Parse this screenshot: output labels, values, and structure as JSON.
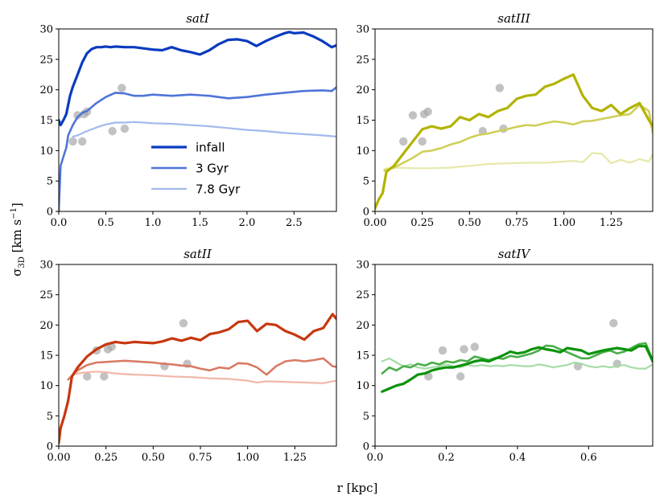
{
  "figure": {
    "ylabel": "σ3D [km s−1]",
    "xlabel": "r [kpc]"
  },
  "legend": {
    "entries": [
      "infall",
      "3 Gyr",
      "7.8 Gyr"
    ],
    "placement": "center"
  },
  "chart_data": [
    {
      "type": "line",
      "title": "satI",
      "xlim": [
        0,
        2.95
      ],
      "ylim": [
        0,
        30
      ],
      "xticks": [
        "0.0",
        "0.5",
        "1.0",
        "1.5",
        "2.0",
        "2.5"
      ],
      "yticks": [
        "0",
        "5",
        "10",
        "15",
        "20",
        "25",
        "30"
      ],
      "colors": [
        "#0a3bbf",
        "#4f74d8",
        "#a3b9ec"
      ],
      "series": [
        {
          "name": "infall",
          "x": [
            0.0,
            0.02,
            0.05,
            0.08,
            0.1,
            0.12,
            0.15,
            0.2,
            0.25,
            0.3,
            0.35,
            0.4,
            0.45,
            0.5,
            0.55,
            0.6,
            0.7,
            0.8,
            0.9,
            1.0,
            1.1,
            1.2,
            1.3,
            1.4,
            1.5,
            1.6,
            1.7,
            1.8,
            1.9,
            2.0,
            2.1,
            2.2,
            2.3,
            2.4,
            2.45,
            2.5,
            2.6,
            2.7,
            2.8,
            2.9,
            2.95
          ],
          "y": [
            15.0,
            14.2,
            15.0,
            16.0,
            17.5,
            19.0,
            20.5,
            22.5,
            24.5,
            26.0,
            26.7,
            27.0,
            27.0,
            27.1,
            27.0,
            27.1,
            27.0,
            27.0,
            26.8,
            26.6,
            26.5,
            27.0,
            26.5,
            26.2,
            25.8,
            26.5,
            27.5,
            28.2,
            28.3,
            28.0,
            27.2,
            28.0,
            28.7,
            29.3,
            29.5,
            29.3,
            29.4,
            28.8,
            28.0,
            27.0,
            27.3
          ]
        },
        {
          "name": "3 Gyr",
          "x": [
            0.0,
            0.02,
            0.05,
            0.08,
            0.1,
            0.15,
            0.2,
            0.25,
            0.3,
            0.4,
            0.5,
            0.6,
            0.7,
            0.8,
            0.9,
            1.0,
            1.2,
            1.4,
            1.6,
            1.8,
            2.0,
            2.2,
            2.4,
            2.6,
            2.8,
            2.9,
            2.95
          ],
          "y": [
            0.0,
            7.5,
            9.0,
            10.5,
            12.5,
            14.2,
            15.5,
            16.2,
            16.5,
            17.8,
            18.8,
            19.5,
            19.4,
            19.0,
            19.0,
            19.2,
            19.0,
            19.2,
            19.0,
            18.6,
            18.8,
            19.2,
            19.5,
            19.8,
            19.9,
            19.8,
            20.4
          ]
        },
        {
          "name": "7.8 Gyr",
          "x": [
            0.15,
            0.2,
            0.3,
            0.4,
            0.5,
            0.6,
            0.7,
            0.8,
            0.9,
            1.0,
            1.2,
            1.4,
            1.6,
            1.8,
            2.0,
            2.2,
            2.4,
            2.6,
            2.8,
            2.95
          ],
          "y": [
            12.3,
            12.5,
            13.2,
            13.8,
            14.3,
            14.6,
            14.6,
            14.7,
            14.6,
            14.5,
            14.4,
            14.2,
            14.0,
            13.7,
            13.4,
            13.2,
            12.9,
            12.7,
            12.5,
            12.3
          ]
        }
      ],
      "scatter": {
        "x": [
          0.15,
          0.2,
          0.25,
          0.27,
          0.3,
          0.57,
          0.67,
          0.7
        ],
        "y": [
          11.5,
          15.8,
          11.5,
          16.0,
          16.4,
          13.2,
          20.3,
          13.6
        ]
      }
    },
    {
      "type": "line",
      "title": "satIII",
      "xlim": [
        0,
        1.47
      ],
      "ylim": [
        0,
        30
      ],
      "xticks": [
        "0.00",
        "0.25",
        "0.50",
        "0.75",
        "1.00",
        "1.25"
      ],
      "yticks": [
        "0",
        "5",
        "10",
        "15",
        "20",
        "25",
        "30"
      ],
      "colors": [
        "#b2b300",
        "#cfcf5a",
        "#e7e8aa"
      ],
      "series": [
        {
          "name": "infall",
          "x": [
            0.0,
            0.02,
            0.04,
            0.06,
            0.1,
            0.15,
            0.2,
            0.25,
            0.3,
            0.35,
            0.4,
            0.45,
            0.5,
            0.55,
            0.6,
            0.65,
            0.7,
            0.75,
            0.8,
            0.85,
            0.9,
            0.95,
            1.0,
            1.05,
            1.1,
            1.15,
            1.2,
            1.25,
            1.3,
            1.35,
            1.4,
            1.45,
            1.47
          ],
          "y": [
            0.5,
            2.0,
            3.0,
            6.5,
            7.5,
            9.5,
            11.5,
            13.5,
            14.0,
            13.6,
            14.0,
            15.5,
            15.0,
            16.0,
            15.5,
            16.5,
            17.0,
            18.5,
            19.0,
            19.2,
            20.5,
            21.0,
            21.8,
            22.5,
            19.0,
            17.0,
            16.5,
            17.5,
            16.0,
            17.0,
            17.8,
            15.0,
            14.0
          ]
        },
        {
          "name": "3 Gyr",
          "x": [
            0.05,
            0.1,
            0.15,
            0.2,
            0.25,
            0.3,
            0.35,
            0.4,
            0.45,
            0.5,
            0.55,
            0.6,
            0.65,
            0.7,
            0.75,
            0.8,
            0.85,
            0.9,
            0.95,
            1.0,
            1.05,
            1.1,
            1.15,
            1.2,
            1.25,
            1.3,
            1.35,
            1.4,
            1.45,
            1.47
          ],
          "y": [
            6.7,
            7.2,
            8.0,
            8.8,
            9.8,
            10.0,
            10.4,
            11.0,
            11.4,
            12.1,
            12.6,
            12.8,
            13.2,
            13.5,
            13.9,
            14.2,
            14.1,
            14.5,
            14.8,
            14.6,
            14.3,
            14.8,
            14.9,
            15.2,
            15.5,
            15.8,
            16.0,
            17.5,
            16.5,
            12.9
          ]
        },
        {
          "name": "7.8 Gyr",
          "x": [
            0.05,
            0.1,
            0.2,
            0.3,
            0.4,
            0.5,
            0.6,
            0.7,
            0.8,
            0.9,
            1.0,
            1.05,
            1.1,
            1.15,
            1.2,
            1.25,
            1.3,
            1.35,
            1.4,
            1.45,
            1.47
          ],
          "y": [
            7.0,
            7.2,
            7.1,
            7.1,
            7.2,
            7.5,
            7.8,
            7.9,
            8.0,
            8.0,
            8.2,
            8.3,
            8.1,
            9.6,
            9.5,
            7.9,
            8.5,
            8.0,
            8.6,
            8.2,
            9.4
          ]
        }
      ],
      "scatter": {
        "x": [
          0.15,
          0.2,
          0.25,
          0.26,
          0.28,
          0.57,
          0.66,
          0.68
        ],
        "y": [
          11.5,
          15.8,
          11.5,
          16.0,
          16.4,
          13.2,
          20.3,
          13.6
        ]
      }
    },
    {
      "type": "line",
      "title": "satII",
      "xlim": [
        0,
        1.47
      ],
      "ylim": [
        0,
        30
      ],
      "xticks": [
        "0.00",
        "0.25",
        "0.50",
        "0.75",
        "1.00",
        "1.25"
      ],
      "yticks": [
        "0",
        "5",
        "10",
        "15",
        "20",
        "25",
        "30"
      ],
      "colors": [
        "#c7370f",
        "#d97a63",
        "#f0b8ab"
      ],
      "series": [
        {
          "name": "infall",
          "x": [
            0.0,
            0.01,
            0.03,
            0.05,
            0.07,
            0.1,
            0.15,
            0.2,
            0.25,
            0.3,
            0.35,
            0.4,
            0.45,
            0.5,
            0.55,
            0.6,
            0.65,
            0.7,
            0.75,
            0.8,
            0.85,
            0.9,
            0.95,
            1.0,
            1.05,
            1.1,
            1.15,
            1.2,
            1.25,
            1.3,
            1.35,
            1.4,
            1.45,
            1.47
          ],
          "y": [
            0.5,
            3.0,
            5.0,
            7.5,
            11.5,
            13.0,
            14.8,
            16.0,
            16.8,
            17.2,
            17.0,
            17.2,
            17.1,
            17.0,
            17.3,
            17.8,
            17.4,
            17.9,
            17.5,
            18.5,
            18.8,
            19.3,
            20.5,
            20.7,
            19.0,
            20.2,
            20.0,
            19.0,
            18.4,
            17.6,
            19.0,
            19.5,
            21.8,
            21.0
          ]
        },
        {
          "name": "3 Gyr",
          "x": [
            0.05,
            0.08,
            0.1,
            0.15,
            0.2,
            0.25,
            0.3,
            0.35,
            0.4,
            0.45,
            0.5,
            0.55,
            0.6,
            0.65,
            0.7,
            0.75,
            0.8,
            0.85,
            0.9,
            0.95,
            1.0,
            1.05,
            1.1,
            1.15,
            1.2,
            1.25,
            1.3,
            1.35,
            1.4,
            1.45,
            1.47
          ],
          "y": [
            11.0,
            12.0,
            12.5,
            13.4,
            13.8,
            13.9,
            14.0,
            14.1,
            14.0,
            13.9,
            13.8,
            13.6,
            13.5,
            13.3,
            13.2,
            12.8,
            12.5,
            13.0,
            12.8,
            13.7,
            13.6,
            13.0,
            11.8,
            13.2,
            14.0,
            14.2,
            14.0,
            14.2,
            14.5,
            13.2,
            13.1
          ]
        },
        {
          "name": "7.8 Gyr",
          "x": [
            0.05,
            0.08,
            0.1,
            0.15,
            0.2,
            0.25,
            0.3,
            0.4,
            0.5,
            0.6,
            0.7,
            0.8,
            0.9,
            1.0,
            1.05,
            1.1,
            1.2,
            1.3,
            1.4,
            1.45,
            1.47
          ],
          "y": [
            11.0,
            11.8,
            12.0,
            12.2,
            12.3,
            12.2,
            12.0,
            11.8,
            11.7,
            11.5,
            11.4,
            11.2,
            11.1,
            10.8,
            10.5,
            10.7,
            10.6,
            10.5,
            10.4,
            10.7,
            10.8
          ]
        }
      ],
      "scatter": {
        "x": [
          0.15,
          0.2,
          0.24,
          0.26,
          0.28,
          0.56,
          0.66,
          0.68
        ],
        "y": [
          11.5,
          15.8,
          11.5,
          16.0,
          16.4,
          13.2,
          20.3,
          13.6
        ]
      }
    },
    {
      "type": "line",
      "title": "satIV",
      "xlim": [
        0,
        0.78
      ],
      "ylim": [
        0,
        30
      ],
      "xticks": [
        "0.0",
        "0.2",
        "0.4",
        "0.6"
      ],
      "yticks": [
        "0",
        "5",
        "10",
        "15",
        "20",
        "25",
        "30"
      ],
      "colors": [
        "#0b930b",
        "#49ae49",
        "#a6dba6"
      ],
      "series": [
        {
          "name": "infall",
          "x": [
            0.02,
            0.04,
            0.06,
            0.08,
            0.1,
            0.12,
            0.14,
            0.16,
            0.18,
            0.2,
            0.22,
            0.24,
            0.26,
            0.28,
            0.3,
            0.32,
            0.34,
            0.36,
            0.38,
            0.4,
            0.42,
            0.44,
            0.46,
            0.48,
            0.5,
            0.52,
            0.54,
            0.56,
            0.58,
            0.6,
            0.62,
            0.64,
            0.66,
            0.68,
            0.7,
            0.72,
            0.74,
            0.76,
            0.78
          ],
          "y": [
            9.0,
            9.5,
            10.0,
            10.3,
            11.0,
            11.8,
            12.0,
            12.5,
            12.8,
            13.0,
            13.0,
            13.3,
            13.6,
            14.0,
            14.2,
            14.0,
            14.5,
            15.0,
            15.6,
            15.3,
            15.5,
            16.0,
            16.3,
            16.0,
            15.8,
            15.5,
            16.2,
            16.0,
            15.8,
            15.2,
            15.5,
            15.8,
            16.0,
            16.2,
            16.0,
            15.8,
            16.5,
            16.5,
            14.0
          ]
        },
        {
          "name": "3 Gyr",
          "x": [
            0.02,
            0.04,
            0.06,
            0.08,
            0.1,
            0.12,
            0.14,
            0.16,
            0.18,
            0.2,
            0.22,
            0.24,
            0.26,
            0.28,
            0.3,
            0.32,
            0.34,
            0.36,
            0.38,
            0.4,
            0.42,
            0.44,
            0.46,
            0.48,
            0.5,
            0.52,
            0.54,
            0.56,
            0.58,
            0.6,
            0.62,
            0.64,
            0.66,
            0.68,
            0.7,
            0.72,
            0.74,
            0.76,
            0.78
          ],
          "y": [
            12.0,
            13.0,
            12.5,
            13.2,
            13.0,
            13.6,
            13.3,
            13.8,
            13.5,
            14.0,
            13.8,
            14.2,
            14.0,
            14.8,
            14.5,
            14.2,
            14.6,
            14.4,
            14.9,
            14.7,
            15.0,
            15.3,
            15.8,
            16.6,
            16.5,
            16.0,
            15.5,
            15.0,
            14.5,
            14.5,
            15.0,
            15.5,
            15.8,
            15.3,
            15.6,
            16.2,
            16.8,
            17.0,
            14.2
          ]
        },
        {
          "name": "7.8 Gyr",
          "x": [
            0.02,
            0.04,
            0.06,
            0.08,
            0.1,
            0.12,
            0.14,
            0.16,
            0.18,
            0.2,
            0.22,
            0.24,
            0.26,
            0.28,
            0.3,
            0.32,
            0.34,
            0.36,
            0.38,
            0.4,
            0.42,
            0.44,
            0.46,
            0.48,
            0.5,
            0.52,
            0.54,
            0.56,
            0.58,
            0.6,
            0.62,
            0.64,
            0.66,
            0.68,
            0.7,
            0.72,
            0.74,
            0.76,
            0.78
          ],
          "y": [
            14.0,
            14.5,
            13.8,
            13.2,
            13.5,
            13.0,
            12.8,
            13.0,
            13.2,
            13.5,
            13.2,
            13.0,
            13.4,
            13.2,
            13.4,
            13.2,
            13.3,
            13.2,
            13.4,
            13.3,
            13.2,
            13.2,
            13.5,
            13.3,
            13.0,
            13.2,
            13.4,
            13.8,
            13.6,
            13.2,
            13.0,
            13.2,
            13.0,
            13.2,
            13.4,
            13.0,
            12.8,
            12.8,
            13.5
          ]
        }
      ],
      "scatter": {
        "x": [
          0.15,
          0.19,
          0.24,
          0.25,
          0.28,
          0.57,
          0.67,
          0.68
        ],
        "y": [
          11.5,
          15.8,
          11.5,
          16.0,
          16.4,
          13.2,
          20.3,
          13.6
        ]
      }
    }
  ]
}
